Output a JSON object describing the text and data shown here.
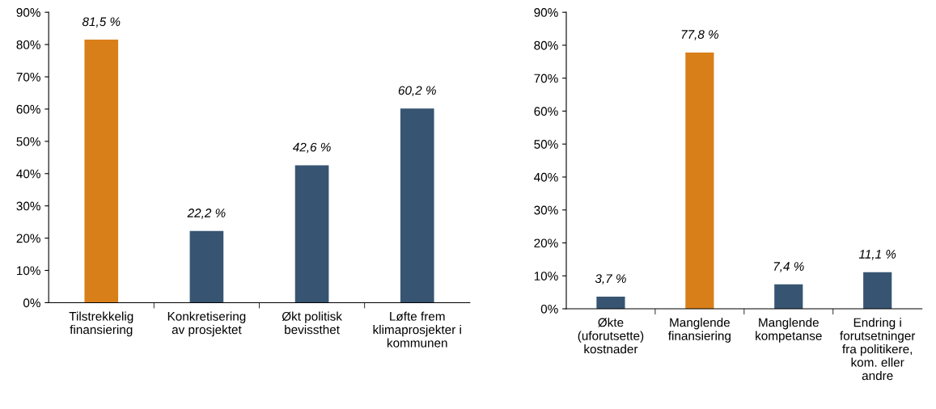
{
  "chart_data": [
    {
      "type": "bar",
      "categories": [
        "Tilstrekkelig\nfinansiering",
        "Konkretisering\nav prosjektet",
        "Økt politisk\nbevissthet",
        "Løfte frem\nklimaprosjekter i\nkommunen"
      ],
      "values": [
        81.5,
        22.2,
        42.6,
        60.2
      ],
      "colors": [
        "#d97f1a",
        "#375572",
        "#375572",
        "#375572"
      ],
      "value_labels": [
        "81,5 %",
        "22,2 %",
        "42,6 %",
        "60,2 %"
      ],
      "ylim": [
        0,
        90
      ],
      "yticks": [
        {
          "value": 0,
          "label": "0%"
        },
        {
          "value": 10,
          "label": "10%"
        },
        {
          "value": 20,
          "label": "20%"
        },
        {
          "value": 30,
          "label": "30%"
        },
        {
          "value": 40,
          "label": "40%"
        },
        {
          "value": 50,
          "label": "50%"
        },
        {
          "value": 60,
          "label": "60%"
        },
        {
          "value": 70,
          "label": "70%"
        },
        {
          "value": 80,
          "label": "80%"
        },
        {
          "value": 90,
          "label": "90%"
        }
      ],
      "grid": false,
      "legend": false
    },
    {
      "type": "bar",
      "categories": [
        "Økte\n(uforutsette)\nkostnader",
        "Manglende\nfinansiering",
        "Manglende\nkompetanse",
        "Endring i\nforutsetninger\nfra politikere,\nkom. eller\nandre"
      ],
      "values": [
        3.7,
        77.8,
        7.4,
        11.1
      ],
      "colors": [
        "#375572",
        "#d97f1a",
        "#375572",
        "#375572"
      ],
      "value_labels": [
        "3,7 %",
        "77,8 %",
        "7,4 %",
        "11,1 %"
      ],
      "ylim": [
        0,
        90
      ],
      "yticks": [
        {
          "value": 0,
          "label": "0%"
        },
        {
          "value": 10,
          "label": "10%"
        },
        {
          "value": 20,
          "label": "20%"
        },
        {
          "value": 30,
          "label": "30%"
        },
        {
          "value": 40,
          "label": "40%"
        },
        {
          "value": 50,
          "label": "50%"
        },
        {
          "value": 60,
          "label": "60%"
        },
        {
          "value": 70,
          "label": "70%"
        },
        {
          "value": 80,
          "label": "80%"
        },
        {
          "value": 90,
          "label": "90%"
        }
      ],
      "grid": false,
      "legend": false
    }
  ]
}
